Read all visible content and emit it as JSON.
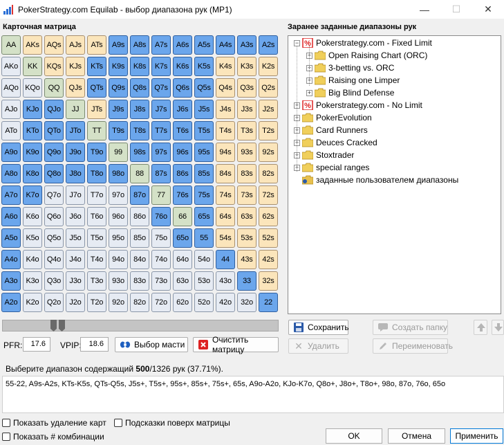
{
  "window": {
    "title": "PokerStrategy.com Equilab - выбор диапазона рук (MP1)"
  },
  "matrix_label": "Карточная матрица",
  "matrix": [
    [
      "AA",
      "AKs",
      "AQs",
      "AJs",
      "ATs",
      "A9s",
      "A8s",
      "A7s",
      "A6s",
      "A5s",
      "A4s",
      "A3s",
      "A2s"
    ],
    [
      "AKo",
      "KK",
      "KQs",
      "KJs",
      "KTs",
      "K9s",
      "K8s",
      "K7s",
      "K6s",
      "K5s",
      "K4s",
      "K3s",
      "K2s"
    ],
    [
      "AQo",
      "KQo",
      "QQ",
      "QJs",
      "QTs",
      "Q9s",
      "Q8s",
      "Q7s",
      "Q6s",
      "Q5s",
      "Q4s",
      "Q3s",
      "Q2s"
    ],
    [
      "AJo",
      "KJo",
      "QJo",
      "JJ",
      "JTs",
      "J9s",
      "J8s",
      "J7s",
      "J6s",
      "J5s",
      "J4s",
      "J3s",
      "J2s"
    ],
    [
      "ATo",
      "KTo",
      "QTo",
      "JTo",
      "TT",
      "T9s",
      "T8s",
      "T7s",
      "T6s",
      "T5s",
      "T4s",
      "T3s",
      "T2s"
    ],
    [
      "A9o",
      "K9o",
      "Q9o",
      "J9o",
      "T9o",
      "99",
      "98s",
      "97s",
      "96s",
      "95s",
      "94s",
      "93s",
      "92s"
    ],
    [
      "A8o",
      "K8o",
      "Q8o",
      "J8o",
      "T8o",
      "98o",
      "88",
      "87s",
      "86s",
      "85s",
      "84s",
      "83s",
      "82s"
    ],
    [
      "A7o",
      "K7o",
      "Q7o",
      "J7o",
      "T7o",
      "97o",
      "87o",
      "77",
      "76s",
      "75s",
      "74s",
      "73s",
      "72s"
    ],
    [
      "A6o",
      "K6o",
      "Q6o",
      "J6o",
      "T6o",
      "96o",
      "86o",
      "76o",
      "66",
      "65s",
      "64s",
      "63s",
      "62s"
    ],
    [
      "A5o",
      "K5o",
      "Q5o",
      "J5o",
      "T5o",
      "95o",
      "85o",
      "75o",
      "65o",
      "55",
      "54s",
      "53s",
      "52s"
    ],
    [
      "A4o",
      "K4o",
      "Q4o",
      "J4o",
      "T4o",
      "94o",
      "84o",
      "74o",
      "64o",
      "54o",
      "44",
      "43s",
      "42s"
    ],
    [
      "A3o",
      "K3o",
      "Q3o",
      "J3o",
      "T3o",
      "93o",
      "83o",
      "73o",
      "63o",
      "53o",
      "43o",
      "33",
      "32s"
    ],
    [
      "A2o",
      "K2o",
      "Q2o",
      "J2o",
      "T2o",
      "92o",
      "82o",
      "72o",
      "62o",
      "52o",
      "42o",
      "32o",
      "22"
    ]
  ],
  "selected": [
    [
      0,
      0,
      0,
      0,
      0,
      1,
      1,
      1,
      1,
      1,
      1,
      1,
      1
    ],
    [
      0,
      0,
      0,
      0,
      1,
      1,
      1,
      1,
      1,
      1,
      0,
      0,
      0
    ],
    [
      0,
      0,
      0,
      0,
      1,
      1,
      1,
      1,
      1,
      1,
      0,
      0,
      0
    ],
    [
      0,
      1,
      1,
      0,
      0,
      1,
      1,
      1,
      1,
      1,
      0,
      0,
      0
    ],
    [
      0,
      1,
      1,
      1,
      0,
      1,
      1,
      1,
      1,
      1,
      0,
      0,
      0
    ],
    [
      1,
      1,
      1,
      1,
      1,
      0,
      1,
      1,
      1,
      1,
      0,
      0,
      0
    ],
    [
      1,
      1,
      1,
      1,
      1,
      1,
      0,
      1,
      1,
      1,
      0,
      0,
      0
    ],
    [
      1,
      1,
      0,
      0,
      0,
      0,
      1,
      0,
      1,
      1,
      0,
      0,
      0
    ],
    [
      1,
      0,
      0,
      0,
      0,
      0,
      0,
      1,
      0,
      1,
      0,
      0,
      0
    ],
    [
      1,
      0,
      0,
      0,
      0,
      0,
      0,
      0,
      1,
      1,
      0,
      0,
      0
    ],
    [
      1,
      0,
      0,
      0,
      0,
      0,
      0,
      0,
      0,
      0,
      1,
      0,
      0
    ],
    [
      1,
      0,
      0,
      0,
      0,
      0,
      0,
      0,
      0,
      0,
      0,
      1,
      0
    ],
    [
      1,
      0,
      0,
      0,
      0,
      0,
      0,
      0,
      0,
      0,
      0,
      0,
      1
    ]
  ],
  "slider_percent": 37.71,
  "pfr_label": "PFR:",
  "pfr_value": "17.6",
  "vpip_label": "VPIP:",
  "vpip_value": "18.6",
  "suit_button": "Выбор масти",
  "clear_button": "Очистить матрицу",
  "presets_label": "Заранее заданные диапазоны рук",
  "tree": [
    {
      "label": "Pokerstrategy.com - Fixed Limit",
      "icon": "pokerstrategy-icon",
      "expander": "−"
    },
    {
      "label": "Open Raising Chart (ORC)",
      "icon": "folder-icon",
      "expander": "+"
    },
    {
      "label": "3-betting vs. ORC",
      "icon": "folder-icon",
      "expander": "+"
    },
    {
      "label": "Raising one Limper",
      "icon": "folder-icon",
      "expander": "+"
    },
    {
      "label": "Big Blind Defense",
      "icon": "folder-icon",
      "expander": "+"
    },
    {
      "label": "Pokerstrategy.com - No Limit",
      "icon": "pokerstrategy-icon",
      "expander": "+"
    },
    {
      "label": "PokerEvolution",
      "icon": "folder-icon",
      "expander": "+"
    },
    {
      "label": "Card Runners",
      "icon": "folder-icon",
      "expander": "+"
    },
    {
      "label": "Deuces Cracked",
      "icon": "folder-icon",
      "expander": "+"
    },
    {
      "label": "Stoxtrader",
      "icon": "folder-icon",
      "expander": "+"
    },
    {
      "label": "special ranges",
      "icon": "folder-icon",
      "expander": "+"
    },
    {
      "label": "заданные пользователем диапазоны",
      "icon": "user-folder-icon",
      "expander": ""
    }
  ],
  "tree_buttons": {
    "save": "Сохранить",
    "create_folder": "Создать папку",
    "delete": "Удалить",
    "rename": "Переименовать"
  },
  "info": {
    "prefix": "Выберите диапазон содержащий ",
    "count": "500",
    "suffix": "/1326 рук (37.71%)."
  },
  "range_text": "55-22, A9s-A2s, KTs-K5s, QTs-Q5s, J5s+, T5s+, 95s+, 85s+, 75s+, 65s, A9o-A2o, KJo-K7o, Q8o+, J8o+, T8o+, 98o, 87o, 76o, 65o",
  "checkboxes": {
    "show_removal": "Показать удаление карт",
    "show_hints": "Подсказки поверх матрицы",
    "show_combos": "Показать # комбинации"
  },
  "dialog_buttons": {
    "ok": "OK",
    "cancel": "Отмена",
    "apply": "Применить"
  },
  "colors": {
    "selected": "#6ba6ec",
    "pair": "#d4e1c7",
    "suited": "#fbe5bb",
    "offsuit": "#e6ebf3"
  }
}
